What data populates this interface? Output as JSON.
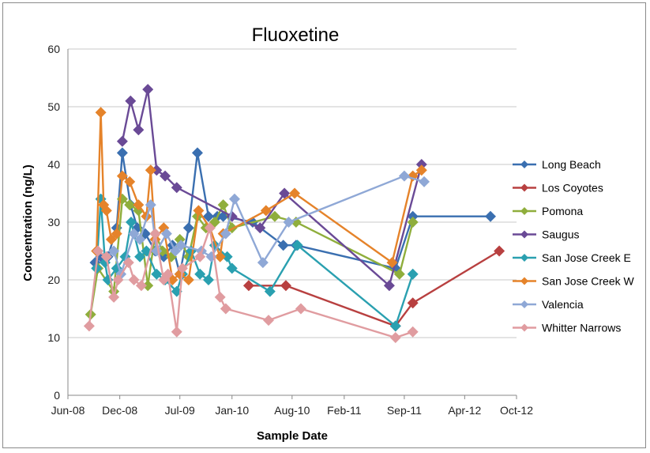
{
  "chart_data": {
    "type": "line",
    "title": "Fluoxetine",
    "xlabel": "Sample Date",
    "ylabel": "Concentration (ng/L)",
    "ylim": [
      0,
      60
    ],
    "yticks": [
      0,
      10,
      20,
      30,
      40,
      50,
      60
    ],
    "xlim": [
      "2008-06-01",
      "2012-10-01"
    ],
    "xticks": [
      {
        "date": "2008-06-01",
        "label": "Jun-08"
      },
      {
        "date": "2008-12-01",
        "label": "Dec-08"
      },
      {
        "date": "2009-07-01",
        "label": "Jul-09"
      },
      {
        "date": "2010-01-01",
        "label": "Jan-10"
      },
      {
        "date": "2010-08-01",
        "label": "Aug-10"
      },
      {
        "date": "2011-02-01",
        "label": "Feb-11"
      },
      {
        "date": "2011-09-01",
        "label": "Sep-11"
      },
      {
        "date": "2012-04-01",
        "label": "Apr-12"
      },
      {
        "date": "2012-10-01",
        "label": "Oct-12"
      }
    ],
    "grid": "horizontal",
    "legend": "right",
    "series": [
      {
        "name": "Long Beach",
        "color": "#3a6fb0",
        "x": [
          "2008-09-05",
          "2008-09-25",
          "2008-10-20",
          "2008-11-20",
          "2008-12-10",
          "2009-01-08",
          "2009-02-01",
          "2009-03-01",
          "2009-04-05",
          "2009-05-05",
          "2009-06-05",
          "2009-07-01",
          "2009-08-01",
          "2009-09-01",
          "2009-10-10",
          "2009-11-10",
          "2009-12-01",
          "2010-03-15",
          "2010-07-01",
          "2010-08-15",
          "2011-08-01",
          "2011-10-01",
          "2012-07-01"
        ],
        "y": [
          23,
          24,
          24,
          29,
          42,
          33,
          29,
          28,
          25,
          24,
          26,
          21,
          29,
          42,
          31,
          31,
          31,
          30,
          26,
          26,
          22,
          31,
          31
        ]
      },
      {
        "name": "Los Coyotes",
        "color": "#b84040",
        "x": [
          "2010-03-01",
          "2010-07-10",
          "2011-08-01",
          "2011-10-01",
          "2012-08-01"
        ],
        "y": [
          19,
          19,
          12,
          16,
          25
        ]
      },
      {
        "name": "Pomona",
        "color": "#8fae3c",
        "x": [
          "2008-08-20",
          "2008-09-15",
          "2008-11-10",
          "2008-12-10",
          "2009-01-05",
          "2009-02-05",
          "2009-03-10",
          "2009-04-05",
          "2009-05-01",
          "2009-06-01",
          "2009-07-01",
          "2009-08-01",
          "2009-09-01",
          "2009-10-01",
          "2009-11-01",
          "2009-12-01",
          "2010-01-01",
          "2010-06-01",
          "2010-08-15",
          "2011-08-15",
          "2011-10-01"
        ],
        "y": [
          14,
          22,
          18,
          34,
          33,
          32,
          19,
          28,
          25,
          24,
          27,
          24,
          31,
          29,
          30,
          33,
          29,
          31,
          30,
          21,
          30
        ]
      },
      {
        "name": "Saugus",
        "color": "#6a4a96",
        "x": [
          "2008-12-10",
          "2009-01-08",
          "2009-02-05",
          "2009-03-10",
          "2009-04-10",
          "2009-05-10",
          "2009-06-20",
          "2010-01-01",
          "2010-04-10",
          "2010-07-05",
          "2011-07-10",
          "2011-11-01"
        ],
        "y": [
          44,
          51,
          46,
          53,
          39,
          38,
          36,
          31,
          29,
          35,
          19,
          40
        ]
      },
      {
        "name": "San Jose Creek E",
        "color": "#2aa0b0",
        "x": [
          "2008-09-10",
          "2008-09-25",
          "2008-10-10",
          "2008-10-20",
          "2008-11-20",
          "2008-12-20",
          "2009-01-10",
          "2009-02-10",
          "2009-03-05",
          "2009-04-10",
          "2009-05-10",
          "2009-06-20",
          "2009-07-10",
          "2009-08-10",
          "2009-09-10",
          "2009-10-10",
          "2009-11-01",
          "2009-12-15",
          "2010-01-01",
          "2010-05-15",
          "2010-08-20",
          "2011-08-01",
          "2011-10-01"
        ],
        "y": [
          22,
          34,
          23,
          20,
          22,
          24,
          30,
          24,
          25,
          21,
          20,
          18,
          21,
          25,
          21,
          20,
          26,
          24,
          22,
          18,
          26,
          12,
          21
        ]
      },
      {
        "name": "San Jose Creek W",
        "color": "#e5832a",
        "x": [
          "2008-09-10",
          "2008-09-25",
          "2008-10-05",
          "2008-10-15",
          "2008-11-01",
          "2008-11-20",
          "2008-12-10",
          "2009-01-05",
          "2009-02-05",
          "2009-03-05",
          "2009-03-20",
          "2009-04-05",
          "2009-05-05",
          "2009-06-05",
          "2009-07-01",
          "2009-08-01",
          "2009-09-05",
          "2009-10-15",
          "2009-11-20",
          "2009-12-01",
          "2010-05-01",
          "2010-08-10",
          "2011-07-20",
          "2011-10-01",
          "2011-11-01"
        ],
        "y": [
          25,
          49,
          33,
          32,
          27,
          28,
          38,
          37,
          33,
          31,
          39,
          27,
          29,
          20,
          21,
          20,
          32,
          29,
          24,
          28,
          32,
          35,
          23,
          38,
          39
        ]
      },
      {
        "name": "Valencia",
        "color": "#8fa8d6",
        "x": [
          "2008-10-15",
          "2008-11-10",
          "2008-12-05",
          "2009-01-20",
          "2009-02-10",
          "2009-03-20",
          "2009-04-10",
          "2009-05-15",
          "2009-06-15",
          "2009-07-05",
          "2009-09-15",
          "2009-10-20",
          "2009-12-10",
          "2010-01-10",
          "2010-04-20",
          "2010-07-20",
          "2011-09-01",
          "2011-11-10"
        ],
        "y": [
          24,
          25,
          21,
          28,
          27,
          33,
          25,
          28,
          25,
          26,
          25,
          24,
          28,
          34,
          23,
          30,
          38,
          37
        ]
      },
      {
        "name": "Whitter Narrows",
        "color": "#e09ca0",
        "x": [
          "2008-08-15",
          "2008-09-15",
          "2008-10-15",
          "2008-11-10",
          "2008-11-25",
          "2009-01-01",
          "2009-01-20",
          "2009-02-15",
          "2009-04-05",
          "2009-05-05",
          "2009-05-20",
          "2009-06-20",
          "2009-07-10",
          "2009-09-10",
          "2009-10-15",
          "2009-11-20",
          "2009-12-10",
          "2010-05-10",
          "2010-09-01",
          "2011-08-01",
          "2011-10-01"
        ],
        "y": [
          12,
          25,
          24,
          17,
          20,
          23,
          20,
          19,
          28,
          20,
          21,
          11,
          22,
          24,
          29,
          17,
          15,
          13,
          15,
          10,
          11
        ]
      }
    ]
  }
}
